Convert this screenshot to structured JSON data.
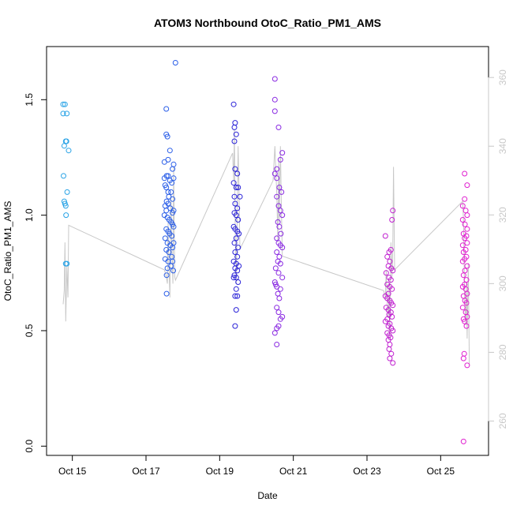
{
  "chart_data": {
    "type": "scatter",
    "title": "ATOM3 Northbound OtoC_Ratio_PM1_AMS",
    "xlabel": "Date",
    "ylabel": "OtoC_Ratio_PM1_AMS",
    "x_ticks": [
      "Oct 15",
      "Oct 17",
      "Oct 19",
      "Oct 21",
      "Oct 23",
      "Oct 25"
    ],
    "x_tick_values": [
      15,
      17,
      19,
      21,
      23,
      25
    ],
    "xlim": [
      14.3,
      26.3
    ],
    "y_ticks": [
      "0.0",
      "0.5",
      "1.0",
      "1.5"
    ],
    "y_tick_values": [
      0.0,
      0.5,
      1.0,
      1.5
    ],
    "ylim": [
      -0.04,
      1.73
    ],
    "y2_ticks": [
      "260",
      "280",
      "300",
      "320",
      "340",
      "360"
    ],
    "y2_tick_values": [
      260,
      280,
      300,
      320,
      340,
      360
    ],
    "y2lim": [
      250,
      369
    ],
    "y2_color": "#c8c8c8",
    "grid": false,
    "color_scale": [
      "#29a3e6",
      "#2255e8",
      "#2222d8",
      "#8a2be2",
      "#c020d0",
      "#e020d0"
    ],
    "secondary_line_color": "#c8c8c8",
    "series": [
      {
        "color": "#29a3e6",
        "points": [
          [
            14.75,
            1.48
          ],
          [
            14.8,
            1.48
          ],
          [
            14.75,
            1.44
          ],
          [
            14.85,
            1.44
          ],
          [
            14.78,
            1.3
          ],
          [
            14.82,
            1.32
          ],
          [
            14.84,
            1.32
          ],
          [
            14.9,
            1.28
          ],
          [
            14.76,
            1.17
          ],
          [
            14.86,
            1.1
          ],
          [
            14.78,
            1.06
          ],
          [
            14.8,
            1.05
          ],
          [
            14.82,
            1.04
          ],
          [
            14.83,
            1.0
          ],
          [
            14.82,
            0.79
          ],
          [
            14.85,
            0.79
          ]
        ]
      },
      {
        "color": "#2a5ee8",
        "points": [
          [
            17.8,
            1.66
          ],
          [
            17.55,
            1.46
          ],
          [
            17.55,
            1.35
          ],
          [
            17.58,
            1.34
          ],
          [
            17.65,
            1.28
          ],
          [
            17.6,
            1.24
          ],
          [
            17.5,
            1.23
          ],
          [
            17.75,
            1.22
          ],
          [
            17.72,
            1.2
          ],
          [
            17.5,
            1.16
          ],
          [
            17.56,
            1.17
          ],
          [
            17.6,
            1.17
          ],
          [
            17.65,
            1.15
          ],
          [
            17.7,
            1.14
          ],
          [
            17.75,
            1.16
          ],
          [
            17.52,
            1.13
          ],
          [
            17.55,
            1.12
          ],
          [
            17.6,
            1.1
          ],
          [
            17.62,
            1.08
          ],
          [
            17.68,
            1.1
          ],
          [
            17.72,
            1.07
          ],
          [
            17.56,
            1.06
          ],
          [
            17.6,
            1.05
          ],
          [
            17.52,
            1.04
          ],
          [
            17.55,
            1.02
          ],
          [
            17.66,
            1.03
          ],
          [
            17.72,
            1.01
          ],
          [
            17.75,
            1.02
          ],
          [
            17.5,
            1.0
          ],
          [
            17.58,
            0.99
          ],
          [
            17.63,
            0.98
          ],
          [
            17.68,
            0.97
          ],
          [
            17.72,
            0.96
          ],
          [
            17.75,
            0.95
          ],
          [
            17.55,
            0.94
          ],
          [
            17.6,
            0.93
          ],
          [
            17.64,
            0.92
          ],
          [
            17.7,
            0.91
          ],
          [
            17.52,
            0.9
          ],
          [
            17.58,
            0.88
          ],
          [
            17.66,
            0.87
          ],
          [
            17.72,
            0.86
          ],
          [
            17.75,
            0.88
          ],
          [
            17.55,
            0.85
          ],
          [
            17.62,
            0.84
          ],
          [
            17.7,
            0.82
          ],
          [
            17.52,
            0.81
          ],
          [
            17.6,
            0.8
          ],
          [
            17.72,
            0.8
          ],
          [
            17.68,
            0.78
          ],
          [
            17.58,
            0.77
          ],
          [
            17.74,
            0.76
          ],
          [
            17.56,
            0.74
          ],
          [
            17.56,
            0.66
          ]
        ]
      },
      {
        "color": "#2a22d8",
        "points": [
          [
            19.38,
            1.48
          ],
          [
            19.42,
            1.4
          ],
          [
            19.4,
            1.38
          ],
          [
            19.45,
            1.35
          ],
          [
            19.4,
            1.32
          ],
          [
            19.42,
            1.2
          ],
          [
            19.48,
            1.18
          ],
          [
            19.38,
            1.14
          ],
          [
            19.45,
            1.12
          ],
          [
            19.5,
            1.12
          ],
          [
            19.4,
            1.08
          ],
          [
            19.55,
            1.08
          ],
          [
            19.42,
            1.05
          ],
          [
            19.48,
            1.03
          ],
          [
            19.4,
            1.01
          ],
          [
            19.45,
            1.0
          ],
          [
            19.5,
            0.98
          ],
          [
            19.38,
            0.95
          ],
          [
            19.42,
            0.94
          ],
          [
            19.48,
            0.93
          ],
          [
            19.52,
            0.92
          ],
          [
            19.45,
            0.9
          ],
          [
            19.4,
            0.88
          ],
          [
            19.5,
            0.86
          ],
          [
            19.42,
            0.84
          ],
          [
            19.48,
            0.82
          ],
          [
            19.38,
            0.8
          ],
          [
            19.45,
            0.79
          ],
          [
            19.52,
            0.78
          ],
          [
            19.42,
            0.77
          ],
          [
            19.48,
            0.76
          ],
          [
            19.4,
            0.74
          ],
          [
            19.45,
            0.73
          ],
          [
            19.38,
            0.73
          ],
          [
            19.5,
            0.71
          ],
          [
            19.45,
            0.68
          ],
          [
            19.42,
            0.65
          ],
          [
            19.48,
            0.65
          ],
          [
            19.45,
            0.59
          ],
          [
            19.42,
            0.52
          ]
        ]
      },
      {
        "color": "#8a2ae2",
        "points": [
          [
            20.5,
            1.59
          ],
          [
            20.5,
            1.5
          ],
          [
            20.5,
            1.45
          ],
          [
            20.6,
            1.38
          ],
          [
            20.7,
            1.27
          ],
          [
            20.65,
            1.24
          ],
          [
            20.55,
            1.2
          ],
          [
            20.5,
            1.18
          ],
          [
            20.55,
            1.16
          ],
          [
            20.62,
            1.12
          ],
          [
            20.68,
            1.1
          ],
          [
            20.55,
            1.08
          ],
          [
            20.6,
            1.04
          ],
          [
            20.65,
            1.02
          ],
          [
            20.7,
            1.0
          ],
          [
            20.58,
            0.97
          ],
          [
            20.62,
            0.95
          ],
          [
            20.66,
            0.92
          ],
          [
            20.55,
            0.9
          ],
          [
            20.6,
            0.88
          ],
          [
            20.65,
            0.87
          ],
          [
            20.7,
            0.86
          ],
          [
            20.55,
            0.84
          ],
          [
            20.62,
            0.82
          ],
          [
            20.58,
            0.8
          ],
          [
            20.65,
            0.79
          ],
          [
            20.52,
            0.77
          ],
          [
            20.6,
            0.75
          ],
          [
            20.7,
            0.73
          ],
          [
            20.5,
            0.71
          ],
          [
            20.52,
            0.7
          ],
          [
            20.55,
            0.69
          ],
          [
            20.65,
            0.68
          ],
          [
            20.58,
            0.66
          ],
          [
            20.62,
            0.64
          ],
          [
            20.55,
            0.6
          ],
          [
            20.6,
            0.58
          ],
          [
            20.7,
            0.56
          ],
          [
            20.65,
            0.55
          ],
          [
            20.6,
            0.52
          ],
          [
            20.55,
            0.51
          ],
          [
            20.5,
            0.49
          ],
          [
            20.55,
            0.44
          ]
        ]
      },
      {
        "color": "#c020d0",
        "points": [
          [
            23.5,
            0.91
          ],
          [
            23.65,
            0.85
          ],
          [
            23.7,
            1.02
          ],
          [
            23.68,
            0.98
          ],
          [
            23.6,
            0.84
          ],
          [
            23.55,
            0.82
          ],
          [
            23.62,
            0.8
          ],
          [
            23.58,
            0.78
          ],
          [
            23.66,
            0.77
          ],
          [
            23.7,
            0.76
          ],
          [
            23.52,
            0.75
          ],
          [
            23.6,
            0.73
          ],
          [
            23.65,
            0.72
          ],
          [
            23.55,
            0.7
          ],
          [
            23.62,
            0.69
          ],
          [
            23.68,
            0.68
          ],
          [
            23.58,
            0.66
          ],
          [
            23.5,
            0.65
          ],
          [
            23.55,
            0.64
          ],
          [
            23.62,
            0.63
          ],
          [
            23.66,
            0.62
          ],
          [
            23.7,
            0.61
          ],
          [
            23.52,
            0.6
          ],
          [
            23.58,
            0.59
          ],
          [
            23.65,
            0.58
          ],
          [
            23.6,
            0.57
          ],
          [
            23.68,
            0.56
          ],
          [
            23.55,
            0.55
          ],
          [
            23.5,
            0.54
          ],
          [
            23.62,
            0.53
          ],
          [
            23.58,
            0.52
          ],
          [
            23.66,
            0.51
          ],
          [
            23.7,
            0.5
          ],
          [
            23.55,
            0.49
          ],
          [
            23.6,
            0.48
          ],
          [
            23.64,
            0.47
          ],
          [
            23.58,
            0.46
          ],
          [
            23.62,
            0.44
          ],
          [
            23.6,
            0.42
          ],
          [
            23.66,
            0.4
          ],
          [
            23.62,
            0.38
          ],
          [
            23.7,
            0.36
          ]
        ]
      },
      {
        "color": "#e020d0",
        "points": [
          [
            25.65,
            1.18
          ],
          [
            25.72,
            1.13
          ],
          [
            25.65,
            1.07
          ],
          [
            25.6,
            1.04
          ],
          [
            25.68,
            1.02
          ],
          [
            25.72,
            1.0
          ],
          [
            25.6,
            0.98
          ],
          [
            25.66,
            0.96
          ],
          [
            25.72,
            0.94
          ],
          [
            25.62,
            0.92
          ],
          [
            25.7,
            0.91
          ],
          [
            25.65,
            0.9
          ],
          [
            25.72,
            0.88
          ],
          [
            25.6,
            0.87
          ],
          [
            25.68,
            0.85
          ],
          [
            25.62,
            0.84
          ],
          [
            25.7,
            0.82
          ],
          [
            25.65,
            0.81
          ],
          [
            25.6,
            0.8
          ],
          [
            25.72,
            0.78
          ],
          [
            25.66,
            0.76
          ],
          [
            25.62,
            0.74
          ],
          [
            25.7,
            0.72
          ],
          [
            25.65,
            0.7
          ],
          [
            25.6,
            0.69
          ],
          [
            25.68,
            0.68
          ],
          [
            25.72,
            0.66
          ],
          [
            25.62,
            0.65
          ],
          [
            25.66,
            0.63
          ],
          [
            25.7,
            0.62
          ],
          [
            25.6,
            0.6
          ],
          [
            25.68,
            0.58
          ],
          [
            25.72,
            0.56
          ],
          [
            25.62,
            0.55
          ],
          [
            25.65,
            0.54
          ],
          [
            25.7,
            0.52
          ],
          [
            25.64,
            0.4
          ],
          [
            25.62,
            0.38
          ],
          [
            25.72,
            0.35
          ],
          [
            25.62,
            0.02
          ]
        ]
      }
    ],
    "secondary_line": {
      "points": [
        [
          14.75,
          294
        ],
        [
          14.78,
          298
        ],
        [
          14.8,
          312
        ],
        [
          14.82,
          289
        ],
        [
          14.85,
          305
        ],
        [
          14.88,
          296
        ],
        [
          14.9,
          317
        ],
        [
          17.5,
          304
        ],
        [
          17.55,
          302
        ],
        [
          17.58,
          300
        ],
        [
          17.6,
          318
        ],
        [
          17.62,
          306
        ],
        [
          17.65,
          296
        ],
        [
          17.68,
          326
        ],
        [
          17.7,
          310
        ],
        [
          17.73,
          300
        ],
        [
          17.75,
          334
        ],
        [
          17.78,
          302
        ],
        [
          17.8,
          301
        ],
        [
          19.35,
          338
        ],
        [
          19.38,
          330
        ],
        [
          19.4,
          345
        ],
        [
          19.42,
          318
        ],
        [
          19.45,
          300
        ],
        [
          19.48,
          322
        ],
        [
          19.5,
          340
        ],
        [
          19.52,
          330
        ],
        [
          19.55,
          310
        ],
        [
          20.45,
          330
        ],
        [
          20.5,
          340
        ],
        [
          20.55,
          326
        ],
        [
          20.58,
          312
        ],
        [
          20.6,
          336
        ],
        [
          20.62,
          318
        ],
        [
          20.65,
          340
        ],
        [
          20.68,
          320
        ],
        [
          20.7,
          308
        ],
        [
          23.45,
          298
        ],
        [
          23.5,
          296
        ],
        [
          23.52,
          304
        ],
        [
          23.55,
          294
        ],
        [
          23.58,
          290
        ],
        [
          23.6,
          300
        ],
        [
          23.62,
          284
        ],
        [
          23.65,
          312
        ],
        [
          23.68,
          302
        ],
        [
          23.7,
          310
        ],
        [
          23.72,
          334
        ],
        [
          23.75,
          304
        ],
        [
          25.6,
          324
        ],
        [
          25.62,
          318
        ],
        [
          25.65,
          296
        ],
        [
          25.68,
          288
        ],
        [
          25.7,
          300
        ],
        [
          25.72,
          284
        ],
        [
          25.75,
          306
        ],
        [
          25.78,
          276
        ]
      ]
    }
  }
}
